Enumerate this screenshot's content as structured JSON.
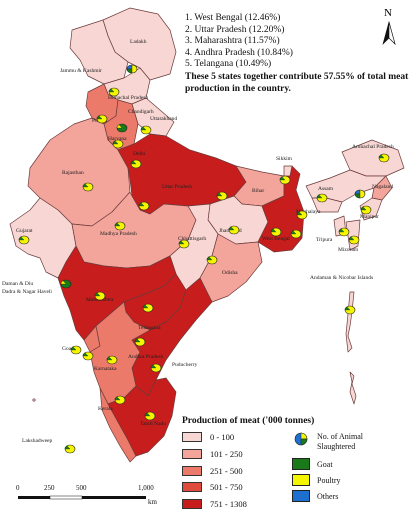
{
  "top_states": {
    "items": [
      "1.  West Bengal (12.46%)",
      "2.  Uttar Pradesh (12.20%)",
      "3.  Maharashtra (11.57%)",
      "4.  Andhra Pradesh (10.84%)",
      "5.  Telangana (10.49%)"
    ],
    "note": "These 5 states together contribute 57.55% of total meat production in the country."
  },
  "legend": {
    "title": "Production of meat ('000 tonnes)",
    "classes": [
      {
        "label": "0 - 100",
        "color": "#f7d6d3"
      },
      {
        "label": "101 - 250",
        "color": "#f3a49b"
      },
      {
        "label": "251 - 500",
        "color": "#eb7a6b"
      },
      {
        "label": "501 - 750",
        "color": "#de4c3d"
      },
      {
        "label": "751 - 1308",
        "color": "#c81d1d"
      }
    ],
    "animal_title": "No. of Animal Slaughtered",
    "animals": [
      {
        "label": "Goat",
        "color": "#1a7a1a"
      },
      {
        "label": "Poultry",
        "color": "#f5f500"
      },
      {
        "label": "Others",
        "color": "#1f6fd1"
      }
    ]
  },
  "north_arrow": "N",
  "scale_bar": {
    "ticks": [
      "0",
      "250",
      "500",
      "1,000"
    ],
    "unit": "km"
  },
  "state_labels": {
    "jk": "Jammu & Kashmir",
    "ladakh": "Ladakh",
    "hp": "Himachal Pradesh",
    "chandigarh": "Chandigarh",
    "punjab": "Punjab",
    "uk": "Uttarakhand",
    "haryana": "Haryana",
    "delhi": "Delhi",
    "rajasthan": "Rajasthan",
    "up": "Uttar Pradesh",
    "bihar": "Bihar",
    "sikkim": "Sikkim",
    "arunachal": "Arunachal Pradesh",
    "assam": "Assam",
    "nagaland": "Nagaland",
    "meghalaya": "Meghalaya",
    "manipur": "Manipur",
    "tripura": "Tripura",
    "mizoram": "Mizoram",
    "gujarat": "Gujarat",
    "mp": "Madhya Pradesh",
    "jharkhand": "Jharkhand",
    "wb": "West Bengal",
    "chhattisgarh": "Chhattisgarh",
    "odisha": "Odisha",
    "daman": "Daman & Diu",
    "dnh": "Dadra & Nagar Haveli",
    "maharashtra": "Maharashtra",
    "telangana": "Telangana",
    "goa": "Goa",
    "karnataka": "Karnataka",
    "ap": "Andhra Pradesh",
    "puducherry": "Puducherry",
    "kerala": "Kerala",
    "tn": "Tamil Nadu",
    "lakshadweep": "Lakshadweep",
    "andaman": "Andaman & Nicobar Islands"
  }
}
